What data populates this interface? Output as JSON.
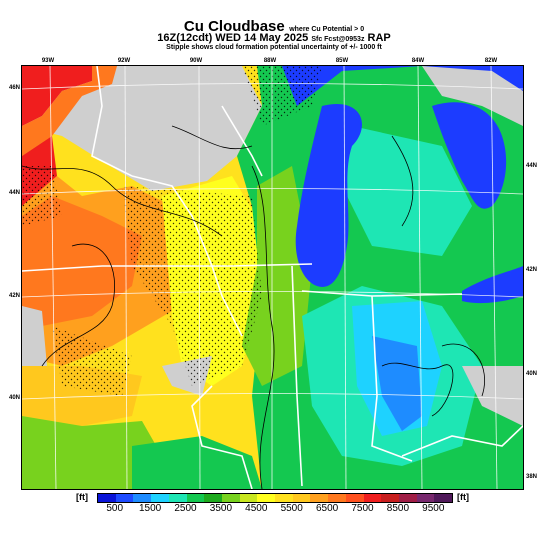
{
  "title": {
    "main": "Cu Cloudbase",
    "qualifier": "where Cu Potential > 0",
    "valid_time": "16Z(12cdt) WED 14 May 2025",
    "run_info": "Sfc Fcst@0953z",
    "model": "RAP",
    "note": "Stipple shows cloud formation potential uncertainty of +/- 1000 ft"
  },
  "map": {
    "lon_labels": [
      "93W",
      "92W",
      "90W",
      "88W",
      "85W",
      "84W",
      "82W"
    ],
    "lat_labels_left": [
      "46N",
      "44N",
      "42N",
      "40N"
    ],
    "lat_labels_right": [
      "44N",
      "42N",
      "40N",
      "38N"
    ],
    "colors": {
      "missing": "#cfcfcf",
      "water": "#1c3cff",
      "state_border": "#ffffff",
      "graticule": "#ffffff",
      "contour": "#000000"
    }
  },
  "colorbar": {
    "unit_left": "[ft]",
    "unit_right": "[ft]",
    "labels": [
      "500",
      "1500",
      "2500",
      "3500",
      "4500",
      "5500",
      "6500",
      "7500",
      "8500",
      "9500"
    ],
    "colors": [
      "#0a14d8",
      "#1e4bff",
      "#1e8cff",
      "#1ed2ff",
      "#1ee6b4",
      "#14c850",
      "#1eaa1e",
      "#78d21e",
      "#c8e61e",
      "#ffff1e",
      "#ffe11e",
      "#ffc81e",
      "#ffa01e",
      "#ff781e",
      "#ff501e",
      "#f01e1e",
      "#c81e1e",
      "#a01e46",
      "#78286e",
      "#50195a"
    ]
  }
}
